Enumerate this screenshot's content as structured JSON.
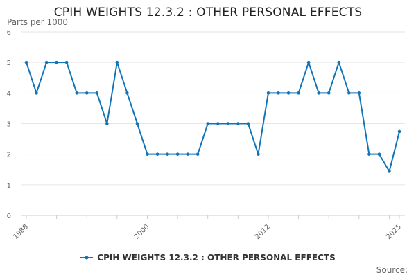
{
  "chart_data": {
    "type": "line",
    "title": "CPIH WEIGHTS 12.3.2 : OTHER PERSONAL EFFECTS",
    "ylabel": "Parts per 1000",
    "xlabel": "",
    "ylim": [
      0,
      6
    ],
    "yticks": [
      "0",
      "1",
      "2",
      "3",
      "4",
      "5",
      "6"
    ],
    "xlim": [
      1988,
      2025
    ],
    "xticks": [
      "1988",
      "2000",
      "2012",
      "2025"
    ],
    "grid": true,
    "legend_position": "bottom-center",
    "series": [
      {
        "name": "CPIH WEIGHTS 12.3.2 : OTHER PERSONAL EFFECTS",
        "color": "#0f75b8",
        "x": [
          1988,
          1989,
          1990,
          1991,
          1992,
          1993,
          1994,
          1995,
          1996,
          1997,
          1998,
          1999,
          2000,
          2001,
          2002,
          2003,
          2004,
          2005,
          2006,
          2007,
          2008,
          2009,
          2010,
          2011,
          2012,
          2013,
          2014,
          2015,
          2016,
          2017,
          2018,
          2019,
          2020,
          2021,
          2022,
          2023,
          2024,
          2025
        ],
        "values": [
          5,
          4,
          5,
          5,
          5,
          4,
          4,
          4,
          3,
          5,
          4,
          3,
          2,
          2,
          2,
          2,
          2,
          2,
          3,
          3,
          3,
          3,
          3,
          2,
          4,
          4,
          4,
          4,
          5,
          4,
          4,
          5,
          4,
          4,
          2,
          2,
          1.44,
          2.74
        ]
      }
    ]
  },
  "source_label": "Source:"
}
